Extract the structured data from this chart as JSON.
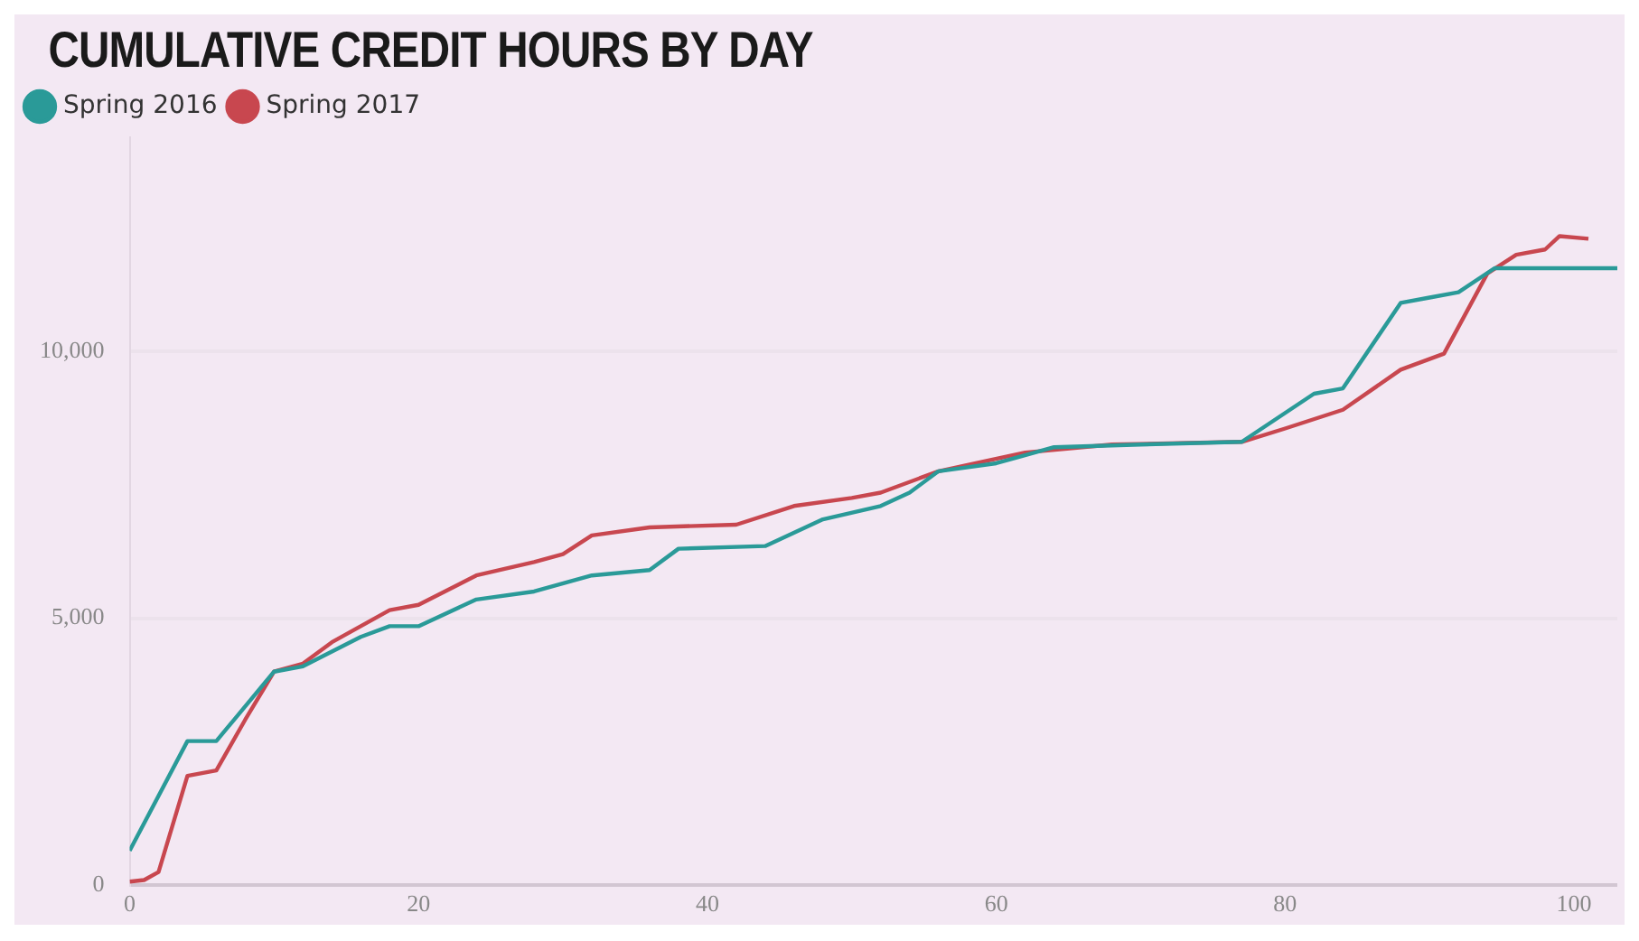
{
  "chart_data": {
    "type": "line",
    "title": "CUMULATIVE CREDIT HOURS BY DAY",
    "series": [
      {
        "name": "Spring 2016",
        "color": "#2a9a98",
        "x": [
          0,
          4,
          6,
          10,
          12,
          16,
          18,
          20,
          24,
          28,
          32,
          36,
          38,
          44,
          48,
          52,
          54,
          56,
          60,
          64,
          70,
          77,
          82,
          84,
          88,
          90,
          92,
          94.5,
          103
        ],
        "values": [
          650,
          2700,
          2700,
          4000,
          4100,
          4650,
          4850,
          4850,
          5350,
          5500,
          5800,
          5900,
          6300,
          6350,
          6850,
          7100,
          7350,
          7750,
          7900,
          8200,
          8250,
          8300,
          9200,
          9300,
          10900,
          11000,
          11100,
          11550,
          11550
        ]
      },
      {
        "name": "Spring 2017",
        "color": "#c8474f",
        "x": [
          0,
          1,
          2,
          4,
          6,
          8,
          10,
          12,
          14,
          18,
          20,
          24,
          28,
          30,
          32,
          36,
          42,
          46,
          50,
          52,
          56,
          62,
          68,
          77,
          80,
          84,
          88,
          91,
          94,
          96,
          98,
          99,
          101
        ],
        "values": [
          70,
          100,
          250,
          2050,
          2150,
          3100,
          4000,
          4150,
          4550,
          5150,
          5250,
          5800,
          6050,
          6200,
          6550,
          6700,
          6750,
          7100,
          7250,
          7350,
          7750,
          8100,
          8250,
          8300,
          8550,
          8900,
          9650,
          9950,
          11450,
          11800,
          11900,
          12150,
          12100
        ]
      }
    ],
    "xlim": [
      0,
      103
    ],
    "xticks": [
      0,
      20,
      40,
      60,
      80,
      100
    ],
    "ylim": [
      0,
      14000
    ],
    "yticks": [
      {
        "value": 0,
        "label": "0"
      },
      {
        "value": 5000,
        "label": "5,000"
      },
      {
        "value": 10000,
        "label": "10,000"
      }
    ],
    "grid": "y",
    "legend": "top left",
    "marker": "none",
    "line_style": "solid"
  }
}
